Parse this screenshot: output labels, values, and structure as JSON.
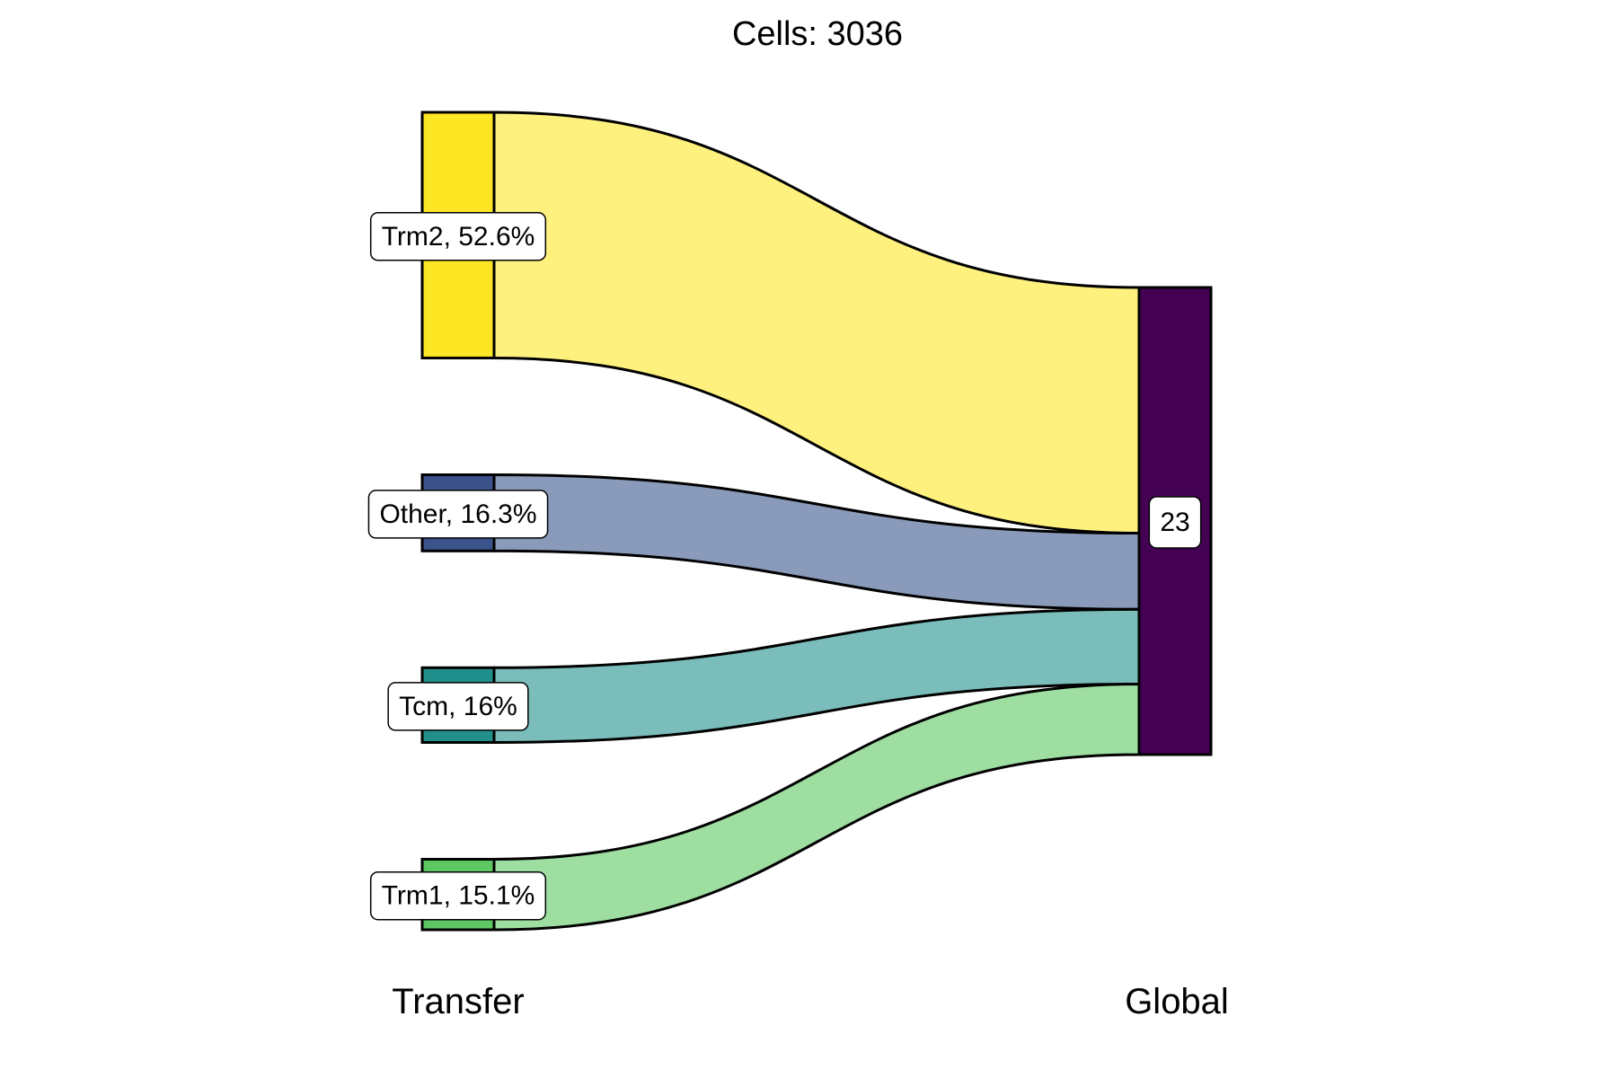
{
  "chart_data": {
    "type": "sankey",
    "title": "Cells:  3036",
    "axes": [
      "Transfer",
      "Global"
    ],
    "source_nodes": [
      {
        "name": "Trm2",
        "label": "Trm2, 52.6%",
        "percent": 52.6,
        "color": "#FDE725",
        "flow_color": "#FEF17E"
      },
      {
        "name": "Other",
        "label": "Other, 16.3%",
        "percent": 16.3,
        "color": "#3B528B",
        "flow_color": "#8A9ABA"
      },
      {
        "name": "Tcm",
        "label": "Tcm, 16%",
        "percent": 16.0,
        "color": "#21908C",
        "flow_color": "#7ABDBA"
      },
      {
        "name": "Trm1",
        "label": "Trm1, 15.1%",
        "percent": 15.1,
        "color": "#5DC863",
        "flow_color": "#9EDFA1"
      }
    ],
    "target_nodes": [
      {
        "name": "23",
        "label": "23",
        "percent": 100.0,
        "color": "#440154"
      }
    ]
  }
}
